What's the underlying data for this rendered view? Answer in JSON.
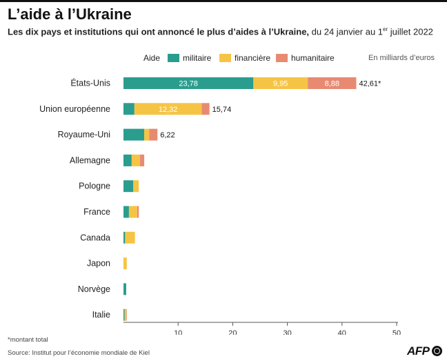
{
  "header": {
    "title": "L’aide à l’Ukraine",
    "subtitle_bold": "Les dix pays et institutions qui ont annoncé le plus d’aides à l’Ukraine,",
    "subtitle_rest_a": " du 24 janvier au 1",
    "subtitle_sup": "er",
    "subtitle_rest_b": " juillet 2022"
  },
  "legend": {
    "title": "Aide",
    "items": [
      "militaire",
      "financière",
      "humanitaire"
    ]
  },
  "unit_note": "En milliards d’euros",
  "colors": {
    "militaire": "#2a9d8f",
    "financiere": "#f6c445",
    "humanitaire": "#e88a72",
    "axis": "#555555",
    "gridline": "#dddddd"
  },
  "chart_data": {
    "type": "bar",
    "orientation": "horizontal",
    "stacked": true,
    "categories": [
      "États-Unis",
      "Union européenne",
      "Royaume-Uni",
      "Allemagne",
      "Pologne",
      "France",
      "Canada",
      "Japon",
      "Norvège",
      "Italie"
    ],
    "series": [
      {
        "name": "militaire",
        "values": [
          23.78,
          2.0,
          3.8,
          1.5,
          1.8,
          1.0,
          0.3,
          0.0,
          0.5,
          0.2
        ]
      },
      {
        "name": "financière",
        "values": [
          9.95,
          12.32,
          0.9,
          1.5,
          1.0,
          1.5,
          1.8,
          0.6,
          0.0,
          0.3
        ]
      },
      {
        "name": "humanitaire",
        "values": [
          8.88,
          1.42,
          1.52,
          0.8,
          0.0,
          0.3,
          0.0,
          0.0,
          0.0,
          0.1
        ]
      }
    ],
    "segment_labels": [
      {
        "category": "États-Unis",
        "series": "militaire",
        "text": "23,78"
      },
      {
        "category": "États-Unis",
        "series": "financière",
        "text": "9,95"
      },
      {
        "category": "États-Unis",
        "series": "humanitaire",
        "text": "8,88"
      },
      {
        "category": "Union européenne",
        "series": "financière",
        "text": "12,32"
      }
    ],
    "total_labels": [
      {
        "category": "États-Unis",
        "text": "42,61*"
      },
      {
        "category": "Union européenne",
        "text": "15,74"
      },
      {
        "category": "Royaume-Uni",
        "text": "6,22"
      }
    ],
    "xticks": [
      "10",
      "20",
      "30",
      "40",
      "50"
    ],
    "xlim": [
      0,
      50
    ],
    "grid": false,
    "legend_position": "top"
  },
  "footnote": "*montant total",
  "source": "Source: Institut pour l’économie mondiale de Kiel",
  "logo_text": "AFP"
}
